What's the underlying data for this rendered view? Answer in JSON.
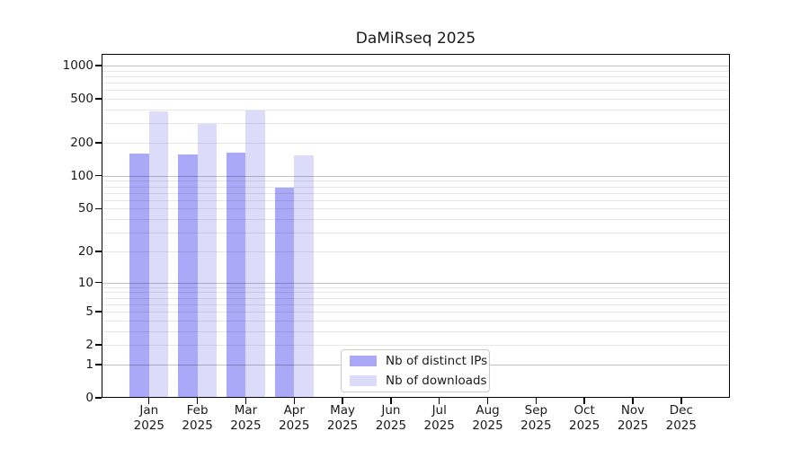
{
  "chart_data": {
    "type": "bar",
    "title": "DaMiRseq 2025",
    "year_label": "2025",
    "months": [
      "Jan",
      "Feb",
      "Mar",
      "Apr",
      "May",
      "Jun",
      "Jul",
      "Aug",
      "Sep",
      "Oct",
      "Nov",
      "Dec"
    ],
    "series": [
      {
        "name": "Nb of distinct IPs",
        "color": "#a9a9f8",
        "values": [
          160,
          157,
          164,
          78,
          0,
          0,
          0,
          0,
          0,
          0,
          0,
          0
        ]
      },
      {
        "name": "Nb of downloads",
        "color": "#dcdcfa",
        "values": [
          385,
          296,
          389,
          154,
          0,
          0,
          0,
          0,
          0,
          0,
          0,
          0
        ]
      }
    ],
    "y_axis": {
      "scale": "log10(1+x)",
      "ticks": [
        0,
        1,
        2,
        5,
        10,
        20,
        50,
        100,
        200,
        500,
        1000
      ],
      "major_gridlines": [
        1,
        10,
        100,
        1000
      ],
      "minor_gridlines": [
        2,
        3,
        4,
        5,
        6,
        7,
        8,
        9,
        20,
        30,
        40,
        50,
        60,
        70,
        80,
        90,
        200,
        300,
        400,
        500,
        600,
        700,
        800,
        900
      ],
      "ylim": [
        0,
        1275
      ]
    },
    "grid": "horizontal",
    "legend_position": "inside lower center"
  },
  "colors": {
    "background": "#ffffff",
    "axis": "#000000",
    "text": "#1a1a1a",
    "grid_major": "#c3c3c3",
    "grid_minor": "#e7e7e7",
    "legend_border": "#cccccc",
    "legend_background": "#ffffff"
  }
}
